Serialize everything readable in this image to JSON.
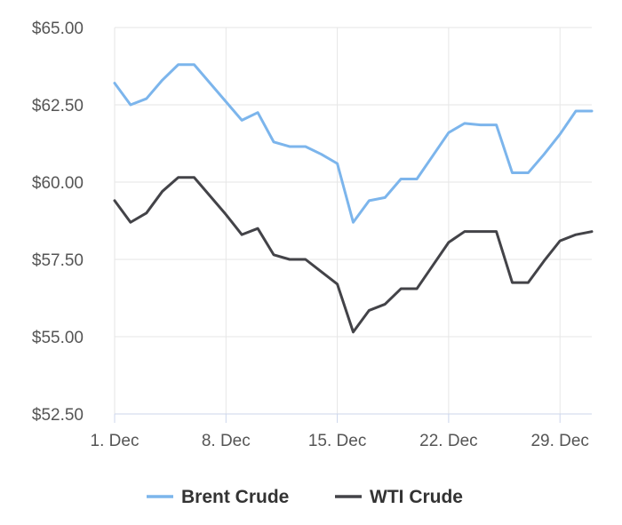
{
  "chart_data": {
    "type": "line",
    "x": [
      1,
      2,
      3,
      4,
      5,
      6,
      7,
      8,
      9,
      10,
      11,
      12,
      13,
      14,
      15,
      16,
      17,
      18,
      19,
      20,
      21,
      22,
      23,
      24,
      25,
      26,
      27,
      28,
      29,
      30,
      31
    ],
    "x_tick_values": [
      1,
      8,
      15,
      22,
      29
    ],
    "x_tick_labels": [
      "1. Dec",
      "8. Dec",
      "15. Dec",
      "22. Dec",
      "29. Dec"
    ],
    "xlim": [
      1,
      31
    ],
    "y_tick_values": [
      52.5,
      55,
      57.5,
      60,
      62.5,
      65
    ],
    "y_tick_labels": [
      "$52.50",
      "$55.00",
      "$57.50",
      "$60.00",
      "$62.50",
      "$65.00"
    ],
    "ylim": [
      52.5,
      65
    ],
    "grid": true,
    "legend_position": "bottom-center",
    "series": [
      {
        "name": "Brent Crude",
        "color": "#7cb5ec",
        "values": [
          63.2,
          62.5,
          62.7,
          63.3,
          63.8,
          63.8,
          63.2,
          62.6,
          62.0,
          62.25,
          61.3,
          61.15,
          61.15,
          60.9,
          60.6,
          58.7,
          59.4,
          59.5,
          60.1,
          60.1,
          60.85,
          61.6,
          61.9,
          61.85,
          61.85,
          60.3,
          60.3,
          60.9,
          61.55,
          62.3,
          62.3
        ]
      },
      {
        "name": "WTI Crude",
        "color": "#434348",
        "values": [
          59.4,
          58.7,
          59.0,
          59.7,
          60.15,
          60.15,
          59.55,
          58.95,
          58.3,
          58.5,
          57.65,
          57.5,
          57.5,
          57.1,
          56.7,
          55.15,
          55.85,
          56.05,
          56.55,
          56.55,
          57.3,
          58.05,
          58.4,
          58.4,
          58.4,
          56.75,
          56.75,
          57.45,
          58.1,
          58.3,
          58.4
        ]
      }
    ]
  }
}
